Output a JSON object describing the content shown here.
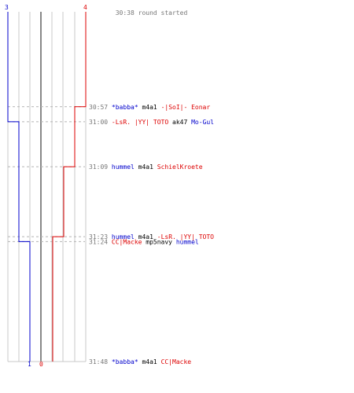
{
  "chart_data": {
    "type": "line",
    "title": "",
    "xlabel": "",
    "ylabel": "",
    "grid": true,
    "colors": {
      "blue_team": "#0000cc",
      "red_team": "#dd0000",
      "grid": "#c8c8c8",
      "center": "#888888",
      "dash": "#b4b4b4",
      "time_text": "#777777",
      "weapon_text": "#000000"
    },
    "start": {
      "time": "30:38",
      "text": "round started",
      "blue_count": "3",
      "red_count": "4"
    },
    "end": {
      "blue_count": "1",
      "red_count": "0"
    },
    "x_scale": {
      "min": 0,
      "max": 4
    },
    "series": [
      {
        "team": "blue",
        "steps": [
          {
            "time": "30:38",
            "value": 3
          },
          {
            "time": "31:00",
            "value": 2
          },
          {
            "time": "31:24",
            "value": 1
          }
        ]
      },
      {
        "team": "red",
        "steps": [
          {
            "time": "30:38",
            "value": 4
          },
          {
            "time": "30:57",
            "value": 3
          },
          {
            "time": "31:09",
            "value": 2
          },
          {
            "time": "31:23",
            "value": 1
          },
          {
            "time": "31:48",
            "value": 0
          }
        ]
      }
    ],
    "events": [
      {
        "time": "30:57",
        "seconds": 19,
        "killer": "*babba*",
        "killer_team": "blue",
        "weapon": "m4a1",
        "victim": "-|SoI|- Eonar",
        "victim_team": "red"
      },
      {
        "time": "31:00",
        "seconds": 22,
        "killer": "-LsR. |YY| TOTO",
        "killer_team": "red",
        "weapon": "ak47",
        "victim": "Mo-Gul",
        "victim_team": "blue"
      },
      {
        "time": "31:09",
        "seconds": 31,
        "killer": "hummel",
        "killer_team": "blue",
        "weapon": "m4a1",
        "victim": "SchielKroete",
        "victim_team": "red"
      },
      {
        "time": "31:23",
        "seconds": 45,
        "killer": "hummel",
        "killer_team": "blue",
        "weapon": "m4a1",
        "victim": "-LsR. |YY| TOTO",
        "victim_team": "red"
      },
      {
        "time": "31:24",
        "seconds": 46,
        "killer": "CC|Macke",
        "killer_team": "red",
        "weapon": "mp5navy",
        "victim": "hummel",
        "victim_team": "blue"
      },
      {
        "time": "31:48",
        "seconds": 70,
        "killer": "*babba*",
        "killer_team": "blue",
        "weapon": "m4a1",
        "victim": "CC|Macke",
        "victim_team": "red"
      }
    ],
    "duration_seconds": 70
  }
}
